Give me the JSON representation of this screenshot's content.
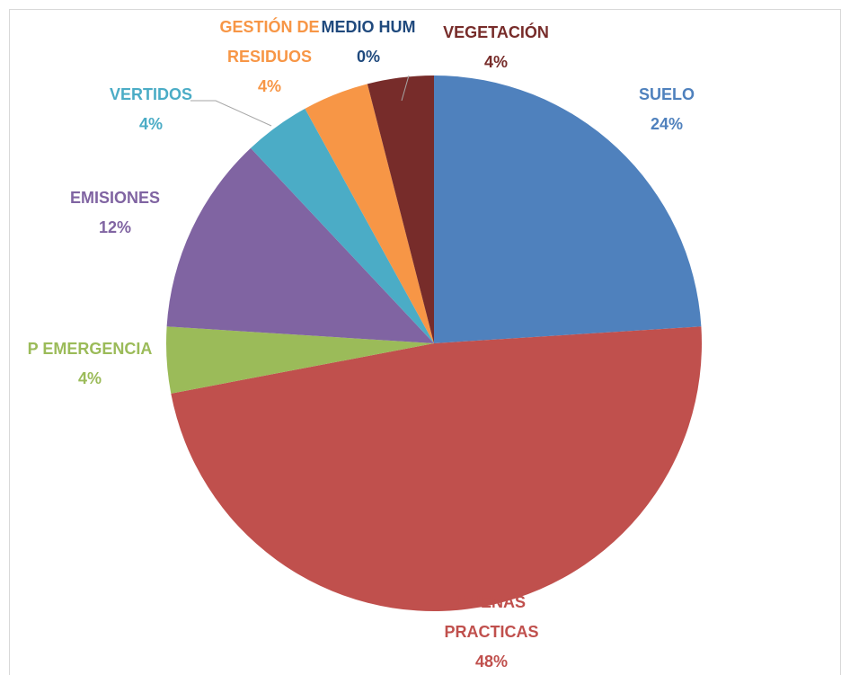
{
  "chart_data": {
    "type": "pie",
    "categories": [
      "SUELO",
      "BUENAS PRACTICAS",
      "P EMERGENCIA",
      "EMISIONES",
      "VERTIDOS",
      "GESTIÓN DE RESIDUOS",
      "MEDIO HUM",
      "VEGETACIÓN"
    ],
    "values": [
      24,
      48,
      4,
      12,
      4,
      4,
      0,
      4
    ],
    "value_labels": [
      "24%",
      "48%",
      "4%",
      "12%",
      "4%",
      "4%",
      "0%",
      "4%"
    ],
    "colors": [
      "#4f81bd",
      "#c0504d",
      "#9bbb59",
      "#8064a2",
      "#4bacc6",
      "#f79646",
      "#1f497d",
      "#772c2a"
    ]
  }
}
